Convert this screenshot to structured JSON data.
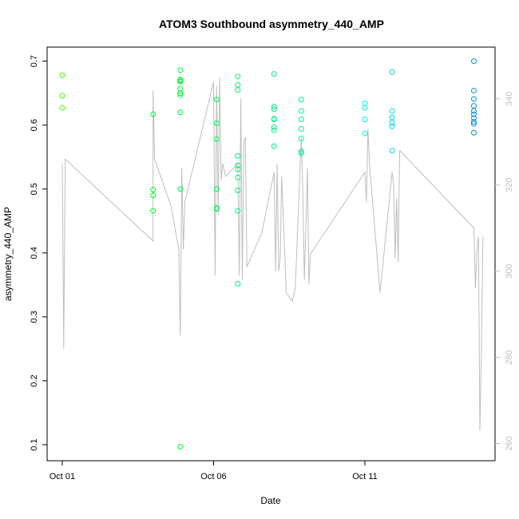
{
  "chart_data": {
    "type": "scatter",
    "title": "ATOM3 Southbound asymmetry_440_AMP",
    "xlabel": "Date",
    "ylabel": "asymmetry_440_AMP",
    "x_ticks": [
      "Oct 01",
      "Oct 06",
      "Oct 11"
    ],
    "y_ticks": [
      "0.1",
      "0.2",
      "0.3",
      "0.4",
      "0.5",
      "0.6",
      "0.7"
    ],
    "y2_ticks": [
      "260",
      "280",
      "300",
      "320",
      "340"
    ],
    "x_unit": "days from Oct 01",
    "xlim": [
      -0.5,
      14.3
    ],
    "ylim": [
      0.075,
      0.722
    ],
    "y2lim": [
      256,
      352
    ],
    "grid": false,
    "colors": {
      "line": "#bebebe",
      "axis": "#000000",
      "right_axis": "#bfbfbf"
    },
    "points": [
      {
        "x": 0.0,
        "y": 0.678
      },
      {
        "x": 0.0,
        "y": 0.646
      },
      {
        "x": 0.0,
        "y": 0.627
      },
      {
        "x": 3.0,
        "y": 0.617
      },
      {
        "x": 3.0,
        "y": 0.499
      },
      {
        "x": 3.0,
        "y": 0.49
      },
      {
        "x": 3.0,
        "y": 0.466
      },
      {
        "x": 3.9,
        "y": 0.686
      },
      {
        "x": 3.9,
        "y": 0.671
      },
      {
        "x": 3.9,
        "y": 0.668
      },
      {
        "x": 3.9,
        "y": 0.67
      },
      {
        "x": 3.9,
        "y": 0.657
      },
      {
        "x": 3.9,
        "y": 0.65
      },
      {
        "x": 3.9,
        "y": 0.647
      },
      {
        "x": 3.9,
        "y": 0.62
      },
      {
        "x": 3.9,
        "y": 0.5
      },
      {
        "x": 3.9,
        "y": 0.097
      },
      {
        "x": 5.1,
        "y": 0.64
      },
      {
        "x": 5.1,
        "y": 0.603
      },
      {
        "x": 5.1,
        "y": 0.578
      },
      {
        "x": 5.1,
        "y": 0.5
      },
      {
        "x": 5.1,
        "y": 0.47
      },
      {
        "x": 5.1,
        "y": 0.469
      },
      {
        "x": 5.8,
        "y": 0.676
      },
      {
        "x": 5.8,
        "y": 0.663
      },
      {
        "x": 5.8,
        "y": 0.655
      },
      {
        "x": 5.8,
        "y": 0.552
      },
      {
        "x": 5.8,
        "y": 0.537
      },
      {
        "x": 5.8,
        "y": 0.531
      },
      {
        "x": 5.8,
        "y": 0.518
      },
      {
        "x": 5.8,
        "y": 0.498
      },
      {
        "x": 5.8,
        "y": 0.466
      },
      {
        "x": 5.8,
        "y": 0.352
      },
      {
        "x": 7.0,
        "y": 0.68
      },
      {
        "x": 7.0,
        "y": 0.629
      },
      {
        "x": 7.0,
        "y": 0.625
      },
      {
        "x": 7.0,
        "y": 0.61
      },
      {
        "x": 7.0,
        "y": 0.609
      },
      {
        "x": 7.0,
        "y": 0.597
      },
      {
        "x": 7.0,
        "y": 0.592
      },
      {
        "x": 7.0,
        "y": 0.567
      },
      {
        "x": 7.9,
        "y": 0.64
      },
      {
        "x": 7.9,
        "y": 0.622
      },
      {
        "x": 7.9,
        "y": 0.609
      },
      {
        "x": 7.9,
        "y": 0.594
      },
      {
        "x": 7.9,
        "y": 0.579
      },
      {
        "x": 7.9,
        "y": 0.559
      },
      {
        "x": 7.9,
        "y": 0.556
      },
      {
        "x": 10.0,
        "y": 0.634
      },
      {
        "x": 10.0,
        "y": 0.627
      },
      {
        "x": 10.0,
        "y": 0.609
      },
      {
        "x": 10.0,
        "y": 0.587
      },
      {
        "x": 10.9,
        "y": 0.683
      },
      {
        "x": 10.9,
        "y": 0.622
      },
      {
        "x": 10.9,
        "y": 0.612
      },
      {
        "x": 10.9,
        "y": 0.604
      },
      {
        "x": 10.9,
        "y": 0.598
      },
      {
        "x": 10.9,
        "y": 0.56
      },
      {
        "x": 13.6,
        "y": 0.7
      },
      {
        "x": 13.6,
        "y": 0.654
      },
      {
        "x": 13.6,
        "y": 0.641
      },
      {
        "x": 13.6,
        "y": 0.63
      },
      {
        "x": 13.6,
        "y": 0.622
      },
      {
        "x": 13.6,
        "y": 0.617
      },
      {
        "x": 13.6,
        "y": 0.611
      },
      {
        "x": 13.6,
        "y": 0.605
      },
      {
        "x": 13.6,
        "y": 0.602
      },
      {
        "x": 13.6,
        "y": 0.588
      }
    ],
    "secondary_line": [
      [
        0.0,
        325
      ],
      [
        0.05,
        282
      ],
      [
        0.1,
        326
      ],
      [
        3.0,
        307
      ],
      [
        3.0,
        318
      ],
      [
        3.0,
        342
      ],
      [
        3.05,
        326
      ],
      [
        3.6,
        315
      ],
      [
        3.85,
        305
      ],
      [
        3.9,
        285
      ],
      [
        3.95,
        324
      ],
      [
        4.0,
        305
      ],
      [
        4.05,
        316
      ],
      [
        5.0,
        344
      ],
      [
        5.05,
        299
      ],
      [
        5.1,
        343
      ],
      [
        5.15,
        313
      ],
      [
        5.2,
        345
      ],
      [
        5.25,
        321
      ],
      [
        5.3,
        325
      ],
      [
        5.4,
        322
      ],
      [
        5.8,
        325
      ],
      [
        5.85,
        299
      ],
      [
        5.9,
        340
      ],
      [
        5.95,
        298
      ],
      [
        6.0,
        330
      ],
      [
        6.05,
        331
      ],
      [
        6.1,
        301
      ],
      [
        6.6,
        309
      ],
      [
        7.0,
        323
      ],
      [
        7.05,
        300
      ],
      [
        7.1,
        325
      ],
      [
        7.15,
        300
      ],
      [
        7.2,
        303
      ],
      [
        7.25,
        322
      ],
      [
        7.4,
        295
      ],
      [
        7.6,
        293
      ],
      [
        7.7,
        296
      ],
      [
        7.9,
        331
      ],
      [
        7.95,
        318
      ],
      [
        8.0,
        298
      ],
      [
        8.05,
        310
      ],
      [
        8.1,
        324
      ],
      [
        8.15,
        297
      ],
      [
        8.2,
        304
      ],
      [
        10.0,
        323
      ],
      [
        10.05,
        316
      ],
      [
        10.1,
        333
      ],
      [
        10.15,
        325
      ],
      [
        10.5,
        295
      ],
      [
        10.9,
        323
      ],
      [
        10.95,
        320
      ],
      [
        11.0,
        303
      ],
      [
        11.05,
        317
      ],
      [
        11.1,
        302
      ],
      [
        11.15,
        328
      ],
      [
        13.6,
        310
      ],
      [
        13.65,
        296
      ],
      [
        13.7,
        305
      ],
      [
        13.75,
        308
      ],
      [
        13.8,
        263
      ],
      [
        13.85,
        281
      ],
      [
        13.9,
        308
      ]
    ]
  }
}
